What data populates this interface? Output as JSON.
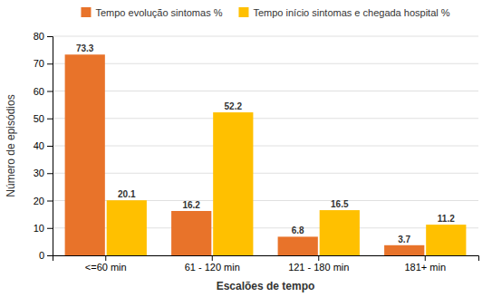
{
  "chart_data": {
    "type": "bar",
    "categories": [
      "<=60 min",
      "61 - 120 min",
      "121 - 180 min",
      "181+ min"
    ],
    "series": [
      {
        "name": "Tempo evolução sintomas %",
        "color": "#E8732A",
        "values": [
          73.3,
          16.2,
          6.8,
          3.7
        ]
      },
      {
        "name": "Tempo início sintomas e chegada hospital %",
        "color": "#FFC000",
        "values": [
          20.1,
          52.2,
          16.5,
          11.2
        ]
      }
    ],
    "xlabel": "Escalões de tempo",
    "ylabel": "Número de episódios",
    "ylim": [
      0,
      80
    ],
    "yticks": [
      0,
      10,
      20,
      30,
      40,
      50,
      60,
      70,
      80
    ],
    "grid": true,
    "data_labels": true,
    "legend": "top"
  }
}
